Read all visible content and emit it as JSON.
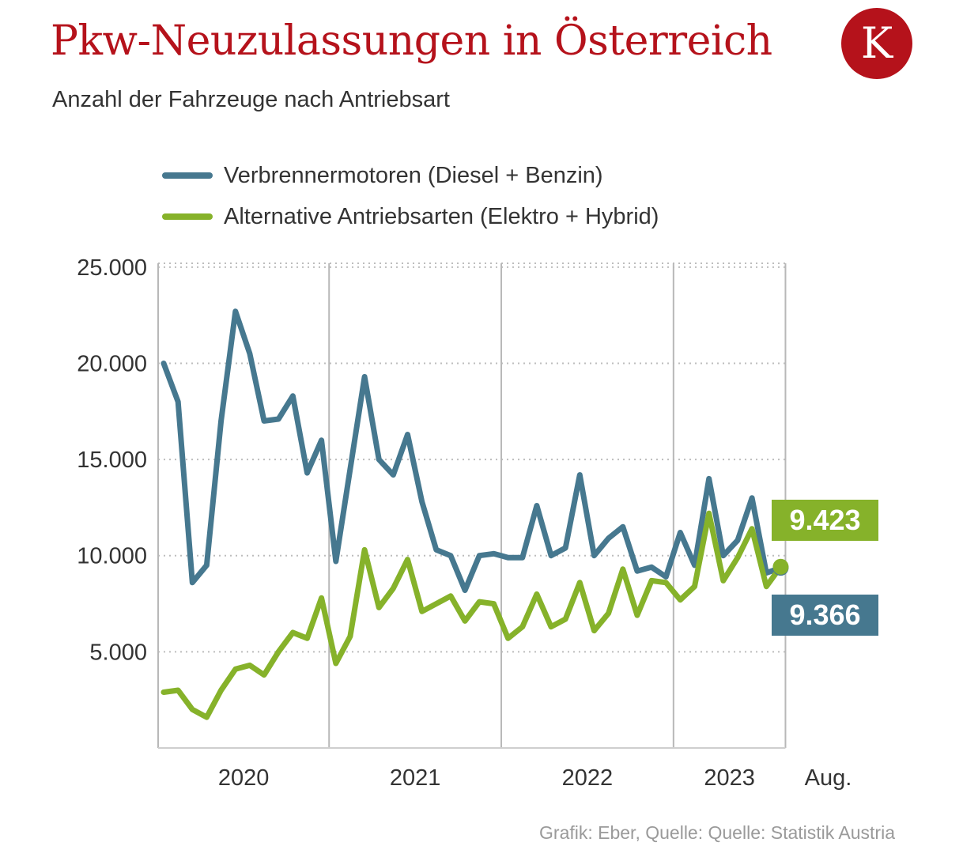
{
  "header": {
    "title": "Pkw-Neuzulassungen in Österreich",
    "subtitle": "Anzahl der Fahrzeuge nach Antriebsart",
    "logo_letter": "K"
  },
  "colors": {
    "title": "#b5121b",
    "logo": "#b5121b",
    "verbrenner": "#46788f",
    "alternative": "#86b22a"
  },
  "footer": {
    "source": "Grafik: Eber, Quelle: Quelle: Statistik Austria"
  },
  "chart_data": {
    "type": "line",
    "title": "Pkw-Neuzulassungen in Österreich",
    "subtitle": "Anzahl der Fahrzeuge nach Antriebsart",
    "x_unit": "Monat (Jan. 2020 – Aug. 2023)",
    "x_tick_labels": [
      "2020",
      "2021",
      "2022",
      "2023",
      "Aug."
    ],
    "y_ticks": [
      "5.000",
      "10.000",
      "15.000",
      "20.000",
      "25.000"
    ],
    "y_tick_values": [
      5000,
      10000,
      15000,
      20000,
      25000
    ],
    "ylim": [
      0,
      25000
    ],
    "grid": true,
    "legend_position": "top-left",
    "series": [
      {
        "name": "Verbrennermotoren (Diesel + Benzin)",
        "color": "#46788f",
        "end_label": "9.366",
        "values": [
          20000,
          18000,
          8600,
          9500,
          17000,
          22700,
          20500,
          17000,
          17100,
          18300,
          14300,
          16000,
          9700,
          14500,
          19300,
          15000,
          14200,
          16300,
          12800,
          10300,
          10000,
          8200,
          10000,
          10100,
          9900,
          9900,
          12600,
          10000,
          10400,
          14200,
          10000,
          10900,
          11500,
          9200,
          9400,
          8900,
          11200,
          9500,
          14000,
          10000,
          10800,
          13000,
          9100,
          9366
        ]
      },
      {
        "name": "Alternative Antriebsarten (Elektro + Hybrid)",
        "color": "#86b22a",
        "end_label": "9.423",
        "values": [
          2900,
          3000,
          2000,
          1600,
          3000,
          4100,
          4300,
          3800,
          5000,
          6000,
          5700,
          7800,
          4400,
          5800,
          10300,
          7300,
          8300,
          9800,
          7100,
          7500,
          7900,
          6600,
          7600,
          7500,
          5700,
          6300,
          8000,
          6300,
          6700,
          8600,
          6100,
          7000,
          9300,
          6900,
          8700,
          8600,
          7700,
          8400,
          12200,
          8700,
          9900,
          11400,
          8400,
          9423
        ]
      }
    ]
  }
}
